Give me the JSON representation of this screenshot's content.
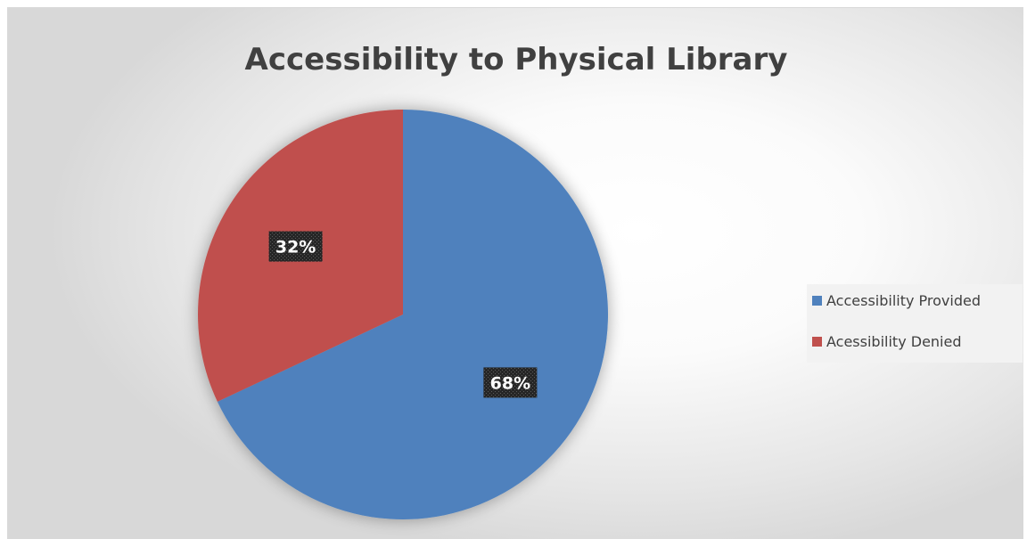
{
  "chart_data": {
    "type": "pie",
    "title": "Accessibility to Physical Library",
    "categories": [
      "Accessibility Provided",
      "Acessibility Denied"
    ],
    "values": [
      68,
      32
    ],
    "data_labels": [
      "68%",
      "32%"
    ],
    "colors": [
      "#4f81bd",
      "#c0504d"
    ],
    "legend": {
      "position": "right",
      "entries": [
        "Accessibility Provided",
        "Acessibility Denied"
      ]
    }
  }
}
